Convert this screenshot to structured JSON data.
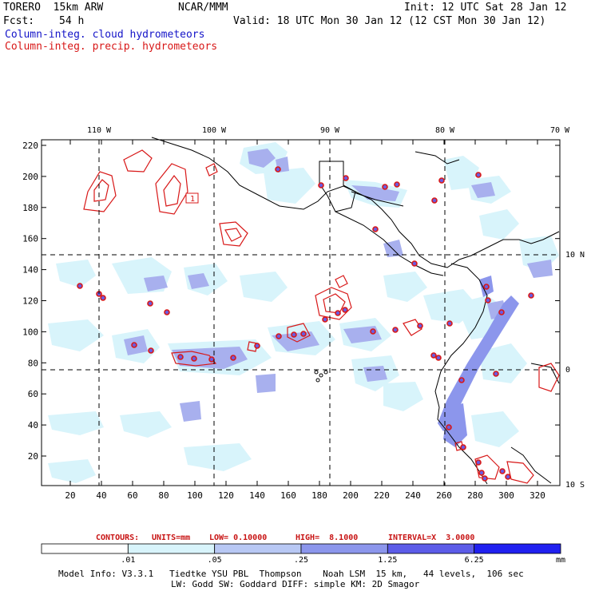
{
  "header": {
    "model": "TORERO  15km ARW",
    "org": "NCAR/MMM",
    "init": "Init: 12 UTC Sat 28 Jan 12",
    "fcst_label": "Fcst:",
    "fcst_value": "54 h",
    "valid": "Valid: 18 UTC Mon 30 Jan 12 (12 CST Mon 30 Jan 12)",
    "field1": "Column-integ. cloud hydrometeors",
    "field2": "Column-integ. precip. hydrometeors"
  },
  "axes": {
    "top_lon_labels": [
      "110 W",
      "100 W",
      "90 W",
      "80 W",
      "70 W"
    ],
    "right_lat_labels": [
      "10 N",
      "0",
      "10 S"
    ],
    "left_y_ticks": [
      "220",
      "200",
      "180",
      "160",
      "140",
      "120",
      "100",
      "80",
      "60",
      "40",
      "20"
    ],
    "bottom_x_ticks": [
      "20",
      "40",
      "60",
      "80",
      "100",
      "120",
      "140",
      "160",
      "180",
      "200",
      "220",
      "240",
      "260",
      "280",
      "300",
      "320"
    ],
    "contour_label": "1"
  },
  "contour_info": {
    "prefix": "CONTOURS:",
    "units": "UNITS=mm",
    "low": "LOW= 0.10000",
    "high": "HIGH=  8.1000",
    "interval": "INTERVAL=X  3.0000"
  },
  "colorbar": {
    "ticks": [
      ".01",
      ".05",
      ".25",
      "1.25",
      "6.25"
    ],
    "unit": "mm",
    "colors": [
      "#ffffff",
      "#d8f4fb",
      "#b8c8f4",
      "#8c96ec",
      "#5c5ce8",
      "#2020f0"
    ]
  },
  "model_info": {
    "line1": "Model Info: V3.3.1   Tiedtke YSU PBL  Thompson    Noah LSM  15 km,   44 levels,  106 sec",
    "line2": "LW: Godd SW: Goddard DIFF: simple KM: 2D Smagor"
  },
  "colors": {
    "contour": "#d81818",
    "cloud_light": "#d8f4fb",
    "cloud_mid": "#8c96ec",
    "coast": "#000000"
  }
}
